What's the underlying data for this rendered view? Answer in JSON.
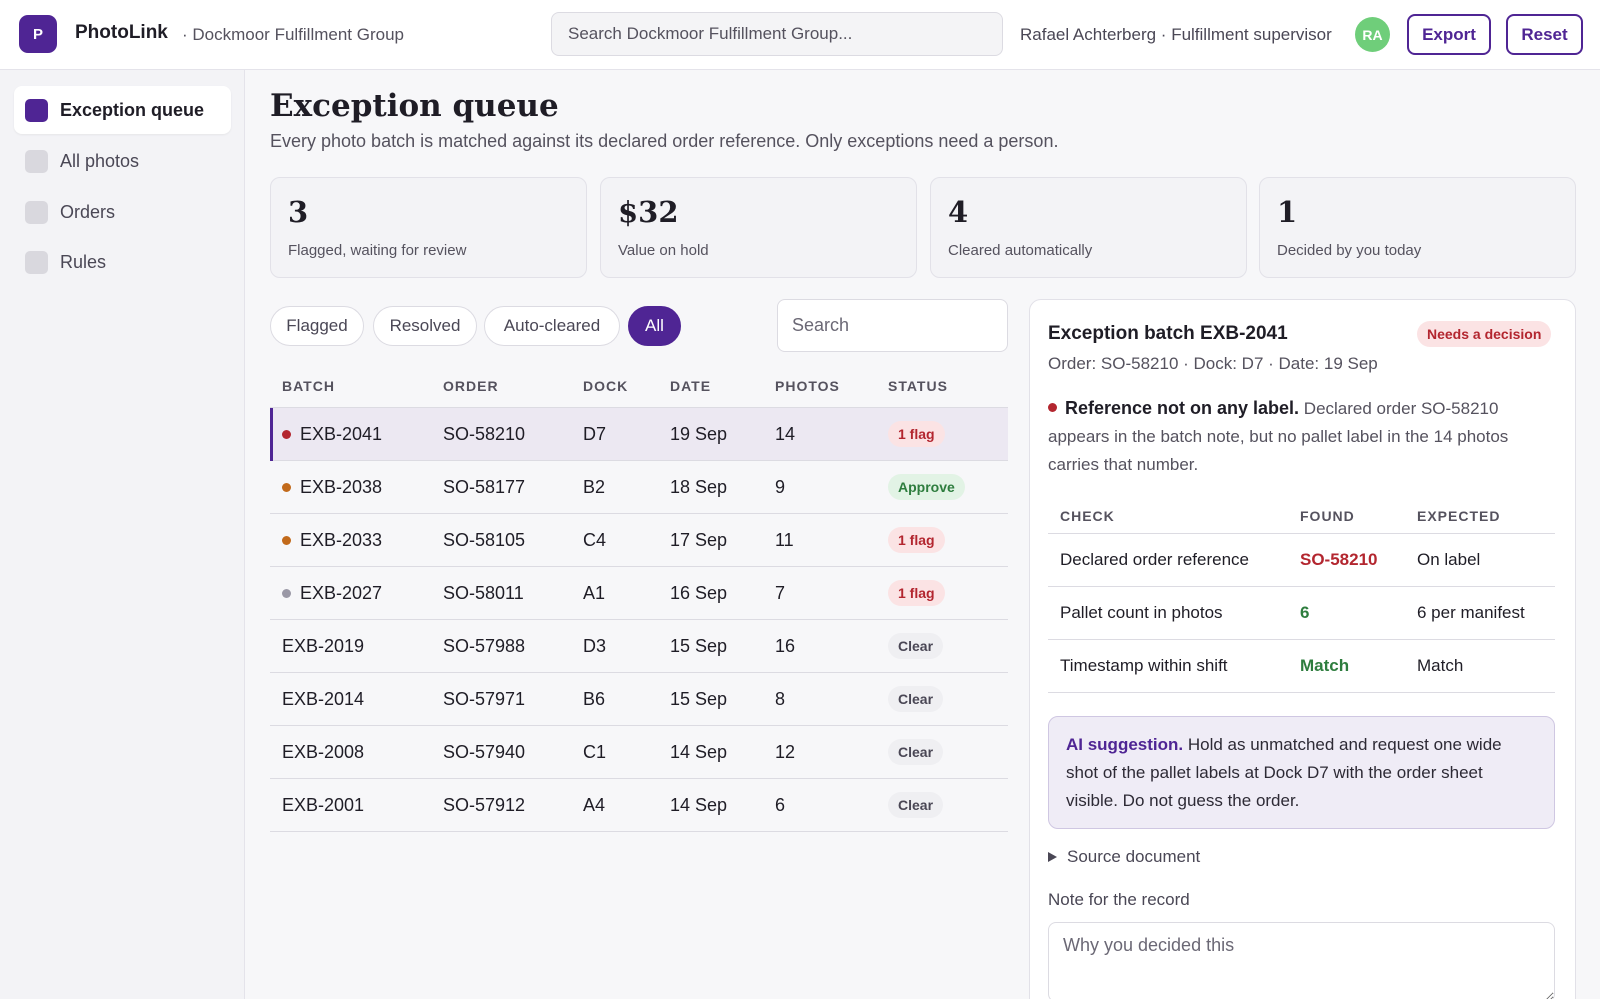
{
  "app": {
    "logo_letter": "P",
    "brand": "PhotoLink",
    "org": "· Dockmoor Fulfillment Group",
    "search_placeholder": "Search Dockmoor Fulfillment Group...",
    "user": "Rafael Achterberg · Fulfillment supervisor",
    "avatar_initials": "RA",
    "export_label": "Export",
    "reset_label": "Reset",
    "brand_color": "#4f2594"
  },
  "sidebar": {
    "items": [
      {
        "label": "Exception queue",
        "active": true
      },
      {
        "label": "All photos",
        "active": false
      },
      {
        "label": "Orders",
        "active": false
      },
      {
        "label": "Rules",
        "active": false
      }
    ]
  },
  "main": {
    "title": "Exception queue",
    "subtitle": "Every photo batch is matched against its declared order reference. Only exceptions need a person."
  },
  "stats": [
    {
      "value": "3",
      "label": "Flagged, waiting for review"
    },
    {
      "value": "$32",
      "label": "Value on hold"
    },
    {
      "value": "4",
      "label": "Cleared automatically"
    },
    {
      "value": "1",
      "label": "Decided by you today"
    }
  ],
  "filters": {
    "chips": [
      "Flagged",
      "Resolved",
      "Auto-cleared",
      "All"
    ],
    "active": "All",
    "search_placeholder": "Search"
  },
  "table": {
    "headers": [
      "BATCH",
      "ORDER",
      "DOCK",
      "DATE",
      "PHOTOS",
      "STATUS"
    ],
    "rows": [
      {
        "batch": "EXB-2041",
        "order": "SO-58210",
        "dock": "D7",
        "date": "19 Sep",
        "photos": "14",
        "status": "1 flag",
        "status_kind": "flag",
        "dot": "#b3262f"
      },
      {
        "batch": "EXB-2038",
        "order": "SO-58177",
        "dock": "B2",
        "date": "18 Sep",
        "photos": "9",
        "status": "Approve",
        "status_kind": "approve",
        "dot": "#c26a1b"
      },
      {
        "batch": "EXB-2033",
        "order": "SO-58105",
        "dock": "C4",
        "date": "17 Sep",
        "photos": "11",
        "status": "1 flag",
        "status_kind": "flag",
        "dot": "#c26a1b"
      },
      {
        "batch": "EXB-2027",
        "order": "SO-58011",
        "dock": "A1",
        "date": "16 Sep",
        "photos": "7",
        "status": "1 flag",
        "status_kind": "flag",
        "dot": "#9a98a6"
      },
      {
        "batch": "EXB-2019",
        "order": "SO-57988",
        "dock": "D3",
        "date": "15 Sep",
        "photos": "16",
        "status": "Clear",
        "status_kind": "clear",
        "dot": null
      },
      {
        "batch": "EXB-2014",
        "order": "SO-57971",
        "dock": "B6",
        "date": "15 Sep",
        "photos": "8",
        "status": "Clear",
        "status_kind": "clear",
        "dot": null
      },
      {
        "batch": "EXB-2008",
        "order": "SO-57940",
        "dock": "C1",
        "date": "14 Sep",
        "photos": "12",
        "status": "Clear",
        "status_kind": "clear",
        "dot": null
      },
      {
        "batch": "EXB-2001",
        "order": "SO-57912",
        "dock": "A4",
        "date": "14 Sep",
        "photos": "6",
        "status": "Clear",
        "status_kind": "clear",
        "dot": null
      }
    ]
  },
  "detail": {
    "title": "Exception batch EXB-2041",
    "badge": "Needs a decision",
    "meta": "Order: SO-58210 · Dock: D7 · Date: 19 Sep",
    "issue_title": "Reference not on any label.",
    "issue_text": "Declared order SO-58210 appears in the batch note, but no pallet label in the 14 photos carries that number.",
    "check_headers": [
      "CHECK",
      "FOUND",
      "EXPECTED"
    ],
    "checks": [
      {
        "check": "Declared order reference",
        "found": "SO-58210",
        "found_color": "#b3262f",
        "expected": "On label"
      },
      {
        "check": "Pallet count in photos",
        "found": "6",
        "found_color": "#2e7d3e",
        "expected": "6 per manifest"
      },
      {
        "check": "Timestamp within shift",
        "found": "Match",
        "found_color": "#2e7d3e",
        "expected": "Match"
      }
    ],
    "ai_label": "AI suggestion.",
    "ai_text": "Hold as unmatched and request one wide shot of the pallet labels at Dock D7 with the order sheet visible. Do not guess the order.",
    "source_label": "Source document",
    "note_label": "Note for the record",
    "note_placeholder": "Why you decided this"
  }
}
